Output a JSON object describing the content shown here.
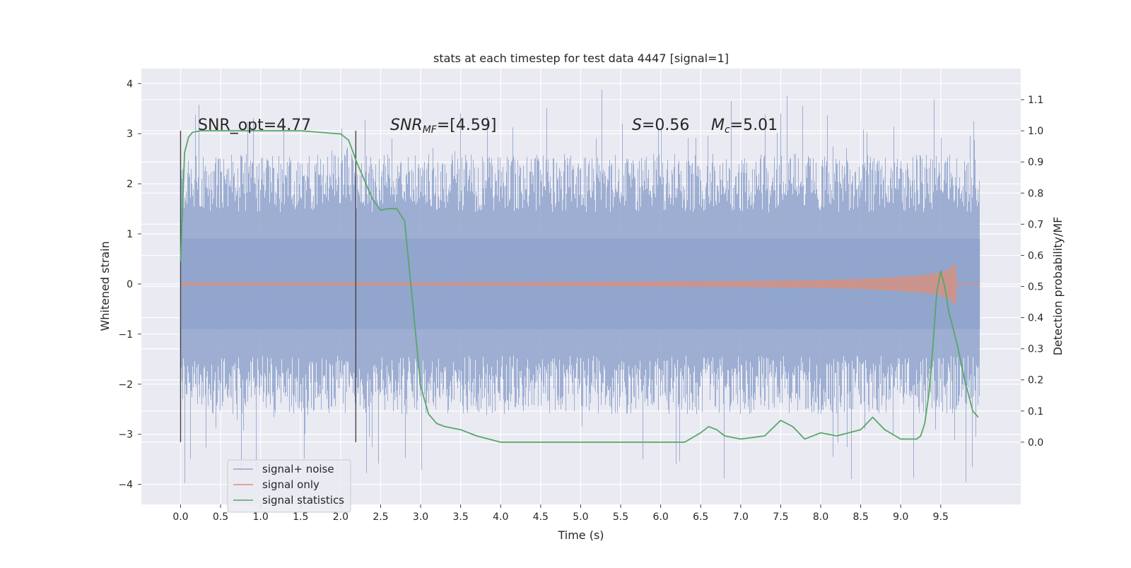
{
  "chart_data": {
    "type": "line",
    "title": "stats at each timestep for test data 4447 [signal=1]",
    "xlabel": "Time (s)",
    "ylabel": "Whitened strain",
    "ylabel_right": "Detection probability/MF",
    "xlim": [
      -0.49,
      10.5
    ],
    "ylim": [
      -4.4,
      4.3
    ],
    "ylim_right": [
      -0.2,
      1.2
    ],
    "x_ticks": [
      "0.0",
      "0.5",
      "1.0",
      "1.5",
      "2.0",
      "2.5",
      "3.0",
      "3.5",
      "4.0",
      "4.5",
      "5.0",
      "5.5",
      "6.0",
      "6.5",
      "7.0",
      "7.5",
      "8.0",
      "8.5",
      "9.0",
      "9.5"
    ],
    "y_ticks_left": [
      "4",
      "3",
      "2",
      "1",
      "0",
      "−1",
      "−2",
      "−3",
      "−4"
    ],
    "y_ticks_right": [
      "1.1",
      "1.0",
      "0.9",
      "0.8",
      "0.7",
      "0.6",
      "0.5",
      "0.4",
      "0.3",
      "0.2",
      "0.1",
      "0.0"
    ],
    "grid": true,
    "legend_position": "lower-left",
    "annotations": {
      "snr_opt": "SNR_opt=4.77",
      "snr_mf_sym": "SNR",
      "snr_mf_sub": "MF",
      "snr_mf_val": "=[4.59]",
      "s_sym": "S",
      "s_val": "=0.56",
      "mc_sym": "M",
      "mc_sub": "c",
      "mc_val": "=5.01"
    },
    "vertical_markers": [
      0.0,
      2.19
    ],
    "series": [
      {
        "name": "signal+ noise",
        "color": "#8fa3cc",
        "kind": "noise-band",
        "x_range": [
          0.0,
          9.99
        ],
        "core_range": [
          -0.9,
          0.9
        ],
        "typical_peak": 2.6,
        "extreme_range": [
          -4.05,
          3.92
        ]
      },
      {
        "name": "signal only",
        "color": "#dd8f78",
        "kind": "chirp-envelope",
        "x": [
          0.0,
          3.0,
          5.0,
          6.0,
          7.0,
          8.0,
          8.5,
          9.0,
          9.3,
          9.5,
          9.6,
          9.65,
          9.68,
          9.7
        ],
        "amplitude": [
          0.02,
          0.02,
          0.03,
          0.04,
          0.05,
          0.07,
          0.09,
          0.13,
          0.17,
          0.22,
          0.28,
          0.35,
          0.4,
          0.0
        ]
      },
      {
        "name": "signal statistics",
        "color": "#55a868",
        "axis": "right",
        "x": [
          0.0,
          0.05,
          0.1,
          0.15,
          0.25,
          0.5,
          1.0,
          1.5,
          2.0,
          2.1,
          2.2,
          2.3,
          2.4,
          2.5,
          2.6,
          2.7,
          2.8,
          2.9,
          3.0,
          3.1,
          3.2,
          3.3,
          3.5,
          3.7,
          4.0,
          4.5,
          5.0,
          5.5,
          6.0,
          6.3,
          6.5,
          6.6,
          6.7,
          6.8,
          7.0,
          7.3,
          7.5,
          7.65,
          7.8,
          8.0,
          8.2,
          8.5,
          8.65,
          8.8,
          9.0,
          9.2,
          9.25,
          9.3,
          9.35,
          9.4,
          9.45,
          9.5,
          9.55,
          9.6,
          9.7,
          9.8,
          9.9,
          9.97
        ],
        "values": [
          0.58,
          0.93,
          0.98,
          0.995,
          1.0,
          1.0,
          1.0,
          1.0,
          0.99,
          0.97,
          0.9,
          0.84,
          0.78,
          0.745,
          0.75,
          0.75,
          0.71,
          0.45,
          0.18,
          0.09,
          0.06,
          0.05,
          0.04,
          0.02,
          0.0,
          0.0,
          0.0,
          0.0,
          0.0,
          0.0,
          0.03,
          0.05,
          0.04,
          0.02,
          0.01,
          0.02,
          0.07,
          0.05,
          0.01,
          0.03,
          0.02,
          0.04,
          0.08,
          0.04,
          0.01,
          0.01,
          0.02,
          0.06,
          0.15,
          0.3,
          0.48,
          0.55,
          0.5,
          0.42,
          0.32,
          0.2,
          0.1,
          0.08
        ]
      }
    ]
  }
}
